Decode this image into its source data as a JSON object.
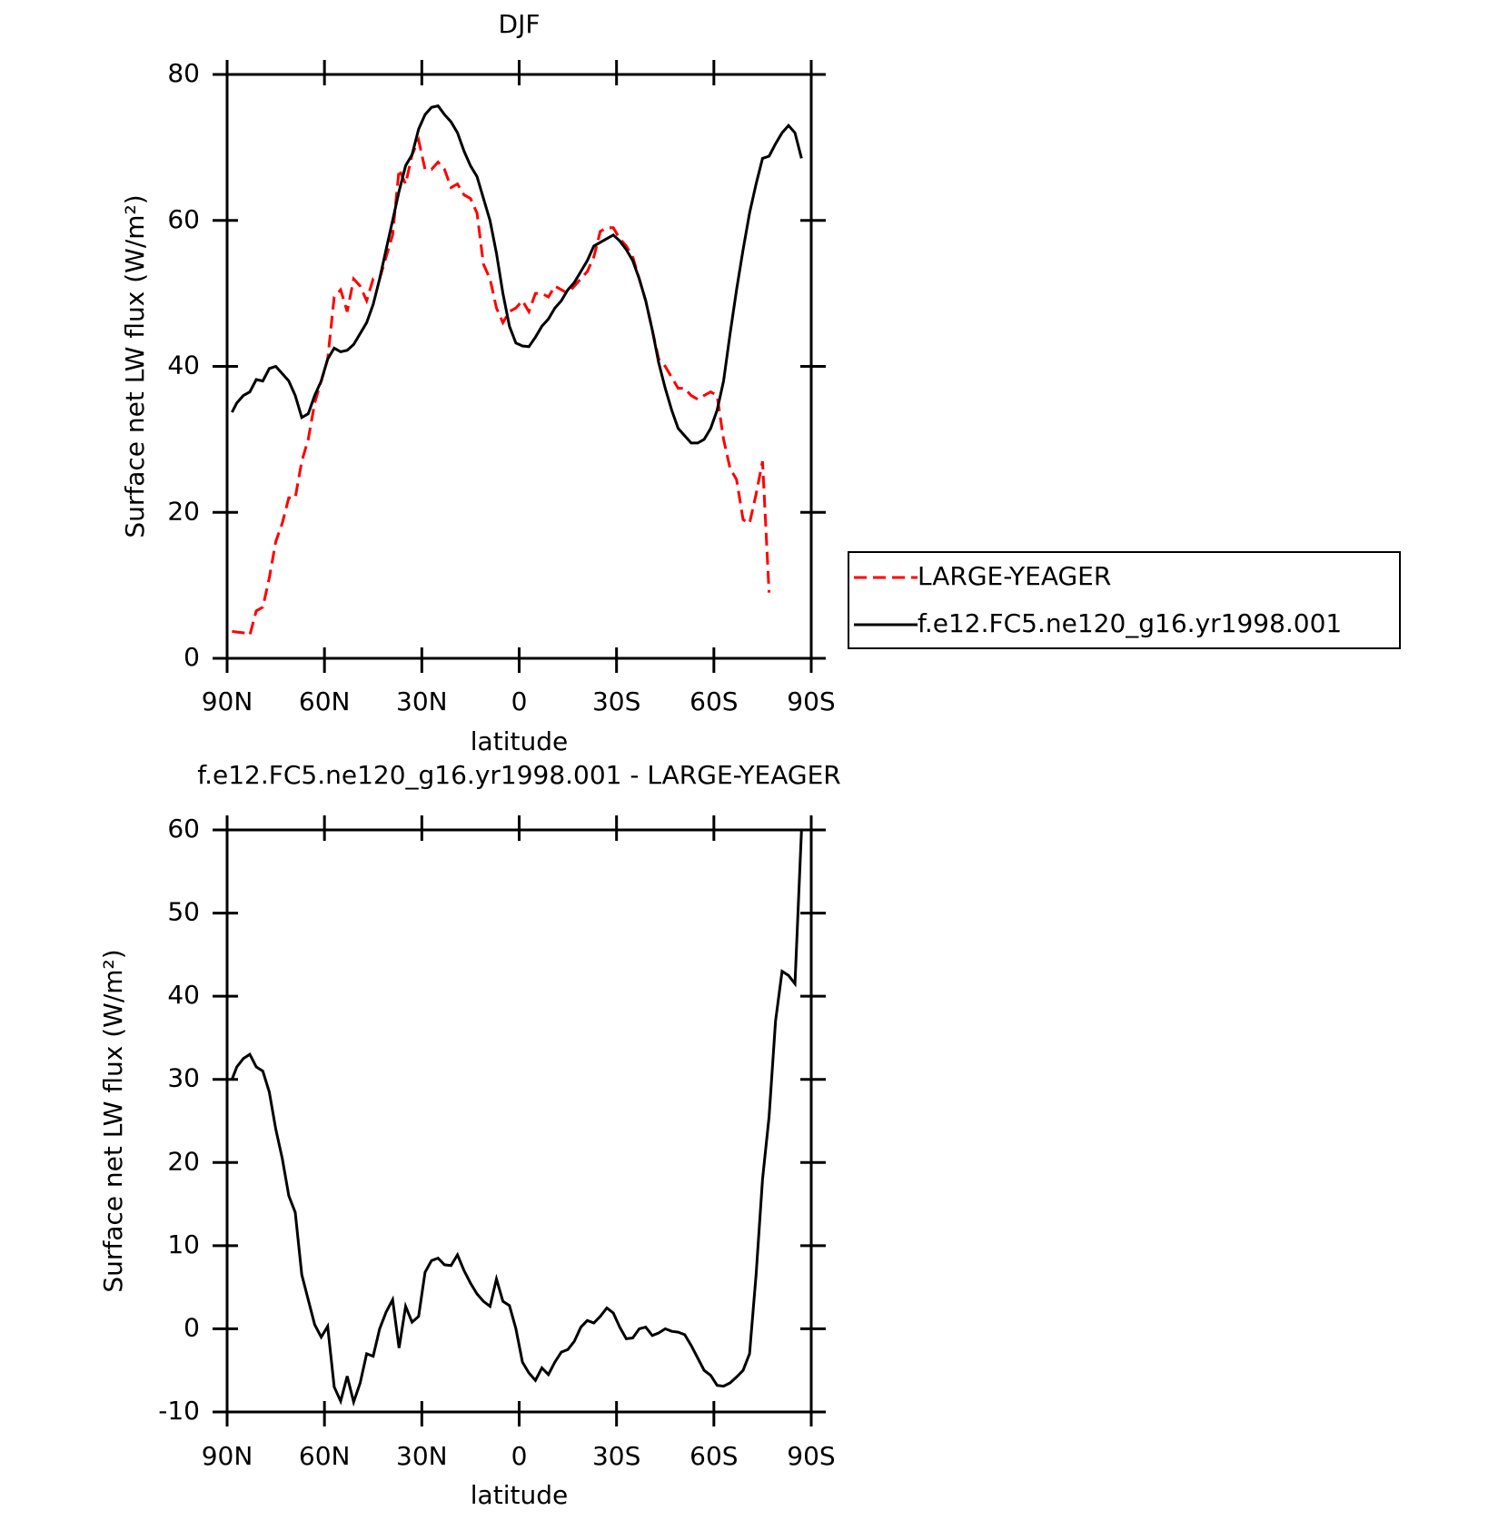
{
  "chart_data": [
    {
      "type": "line",
      "title": "DJF",
      "xlabel": "latitude",
      "ylabel": "Surface net LW flux (W/m²)",
      "x": [
        88.5,
        87,
        85,
        83,
        81,
        79,
        77,
        75,
        73,
        71,
        69,
        67,
        65,
        63,
        61,
        59,
        57,
        55,
        53,
        51,
        49,
        47,
        45,
        43,
        41,
        39,
        37,
        35,
        33,
        31,
        29,
        27,
        25,
        23,
        21,
        19,
        17,
        15,
        13,
        11,
        9,
        7,
        5,
        3,
        1,
        -1,
        -3,
        -5,
        -7,
        -9,
        -11,
        -13,
        -15,
        -17,
        -19,
        -21,
        -23,
        -25,
        -27,
        -29,
        -31,
        -33,
        -35,
        -37,
        -39,
        -41,
        -43,
        -45,
        -47,
        -49,
        -51,
        -53,
        -55,
        -57,
        -59,
        -61,
        -63,
        -65,
        -67,
        -69,
        -71,
        -73,
        -75,
        -77,
        -79,
        -81,
        -83,
        -85,
        -87
      ],
      "series": [
        {
          "name": "LARGE-YEAGER",
          "color": "#ff0000",
          "dash": true,
          "values": [
            3.7,
            3.6,
            3.5,
            3.2,
            6.5,
            7,
            11,
            16,
            18.5,
            22,
            22,
            27,
            30,
            35,
            38,
            41,
            49.5,
            50.5,
            47.5,
            52,
            51,
            49,
            52,
            52,
            55,
            58,
            67,
            65,
            69,
            71,
            67,
            67,
            68,
            67,
            64.5,
            65,
            63.5,
            63,
            61,
            54,
            52,
            48,
            46,
            47.5,
            48,
            49,
            47.5,
            50,
            50,
            49.5,
            51,
            50.5,
            50,
            51,
            52,
            53,
            55,
            58.5,
            59,
            59,
            57.5,
            56.5,
            55,
            52,
            49,
            45,
            41,
            40,
            38.5,
            37,
            37,
            36,
            35.5,
            36,
            36.5,
            36,
            30,
            26,
            24.5,
            19,
            18.5,
            22.5,
            27,
            9,
            null,
            null,
            null,
            null,
            null
          ]
        },
        {
          "name": "f.e12.FC5.ne120_g16.yr1998.001",
          "color": "#000000",
          "dash": false,
          "values": [
            33.7,
            35,
            36,
            36.5,
            38.2,
            38,
            39.7,
            40,
            39,
            38,
            36,
            33,
            33.5,
            36,
            38,
            41,
            42.5,
            42,
            42.2,
            43,
            44.5,
            46,
            48.5,
            52,
            56,
            60,
            64,
            67.5,
            69,
            72.5,
            74.5,
            75.5,
            75.7,
            74.5,
            73.5,
            72,
            69.5,
            67.5,
            66,
            63,
            60,
            55.5,
            50,
            45.5,
            43.2,
            42.8,
            42.7,
            44,
            45.5,
            46.5,
            48,
            49,
            50.5,
            51.5,
            53,
            54.5,
            56.5,
            57,
            57.5,
            58,
            57.2,
            56,
            54.5,
            52,
            49,
            45,
            40.5,
            37,
            34,
            31.5,
            30.5,
            29.5,
            29.5,
            30,
            31.5,
            34,
            38,
            44.5,
            50.5,
            56,
            61,
            65,
            68.5,
            68.8,
            70.5,
            72,
            73,
            72,
            68.5
          ]
        }
      ],
      "xlim": [
        90,
        -90
      ],
      "xticks": [
        {
          "value": 90,
          "label": "90N"
        },
        {
          "value": 60,
          "label": "60N"
        },
        {
          "value": 30,
          "label": "30N"
        },
        0,
        {
          "value": -30,
          "label": "30S"
        },
        {
          "value": -60,
          "label": "60S"
        },
        {
          "value": -90,
          "label": "90S"
        }
      ],
      "ylim": [
        0,
        80
      ],
      "yticks": [
        0,
        20,
        40,
        60,
        80
      ],
      "legend": "outside-right"
    },
    {
      "type": "line",
      "title": "f.e12.FC5.ne120_g16.yr1998.001 - LARGE-YEAGER",
      "xlabel": "latitude",
      "ylabel": "Surface net LW flux (W/m²)",
      "x": [
        88.5,
        87,
        85,
        83,
        81,
        79,
        77,
        75,
        73,
        71,
        69,
        67,
        65,
        63,
        61,
        59,
        57,
        55,
        53,
        51,
        49,
        47,
        45,
        43,
        41,
        39,
        37,
        35,
        33,
        31,
        29,
        27,
        25,
        23,
        21,
        19,
        17,
        15,
        13,
        11,
        9,
        7,
        5,
        3,
        1,
        -1,
        -3,
        -5,
        -7,
        -9,
        -11,
        -13,
        -15,
        -17,
        -19,
        -21,
        -23,
        -25,
        -27,
        -29,
        -31,
        -33,
        -35,
        -37,
        -39,
        -41,
        -43,
        -45,
        -47,
        -49,
        -51,
        -53,
        -55,
        -57,
        -59,
        -61,
        -63,
        -65,
        -67,
        -69,
        -71,
        -73,
        -75,
        -77,
        -79,
        -81,
        -83,
        -85,
        -87
      ],
      "series": [
        {
          "color": "#000000",
          "dash": false,
          "values": [
            30,
            31.5,
            32.5,
            33,
            31.5,
            31,
            28.5,
            24,
            20.5,
            16,
            14,
            6.5,
            3.5,
            0.5,
            -1,
            0.3,
            -7,
            -8.7,
            -5.7,
            -8.8,
            -6.5,
            -3,
            -3.3,
            0,
            2,
            3.5,
            -2.3,
            2.7,
            0.8,
            1.5,
            6.8,
            8.2,
            8.5,
            7.7,
            7.6,
            8.9,
            7,
            5.5,
            4.2,
            3.3,
            2.7,
            6,
            3.3,
            2.8,
            0,
            -4,
            -5.3,
            -6.2,
            -4.7,
            -5.5,
            -4,
            -2.8,
            -2.5,
            -1.5,
            0.2,
            1,
            0.7,
            1.5,
            2.5,
            1.9,
            0.2,
            -1.2,
            -1.1,
            0,
            0.2,
            -0.8,
            -0.5,
            0,
            -0.3,
            -0.4,
            -0.7,
            -2,
            -3.5,
            -5,
            -5.6,
            -6.8,
            -6.9,
            -6.5,
            -5.8,
            -5,
            -3,
            6.5,
            18,
            25.5,
            37,
            43,
            42.5,
            41.5,
            60
          ]
        }
      ],
      "xlim": [
        90,
        -90
      ],
      "xticks": [
        {
          "value": 90,
          "label": "90N"
        },
        {
          "value": 60,
          "label": "60N"
        },
        {
          "value": 30,
          "label": "30N"
        },
        0,
        {
          "value": -30,
          "label": "30S"
        },
        {
          "value": -60,
          "label": "60S"
        },
        {
          "value": -90,
          "label": "90S"
        }
      ],
      "ylim": [
        -10,
        60
      ],
      "yticks": [
        -10,
        0,
        10,
        20,
        30,
        40,
        50,
        60
      ]
    }
  ]
}
